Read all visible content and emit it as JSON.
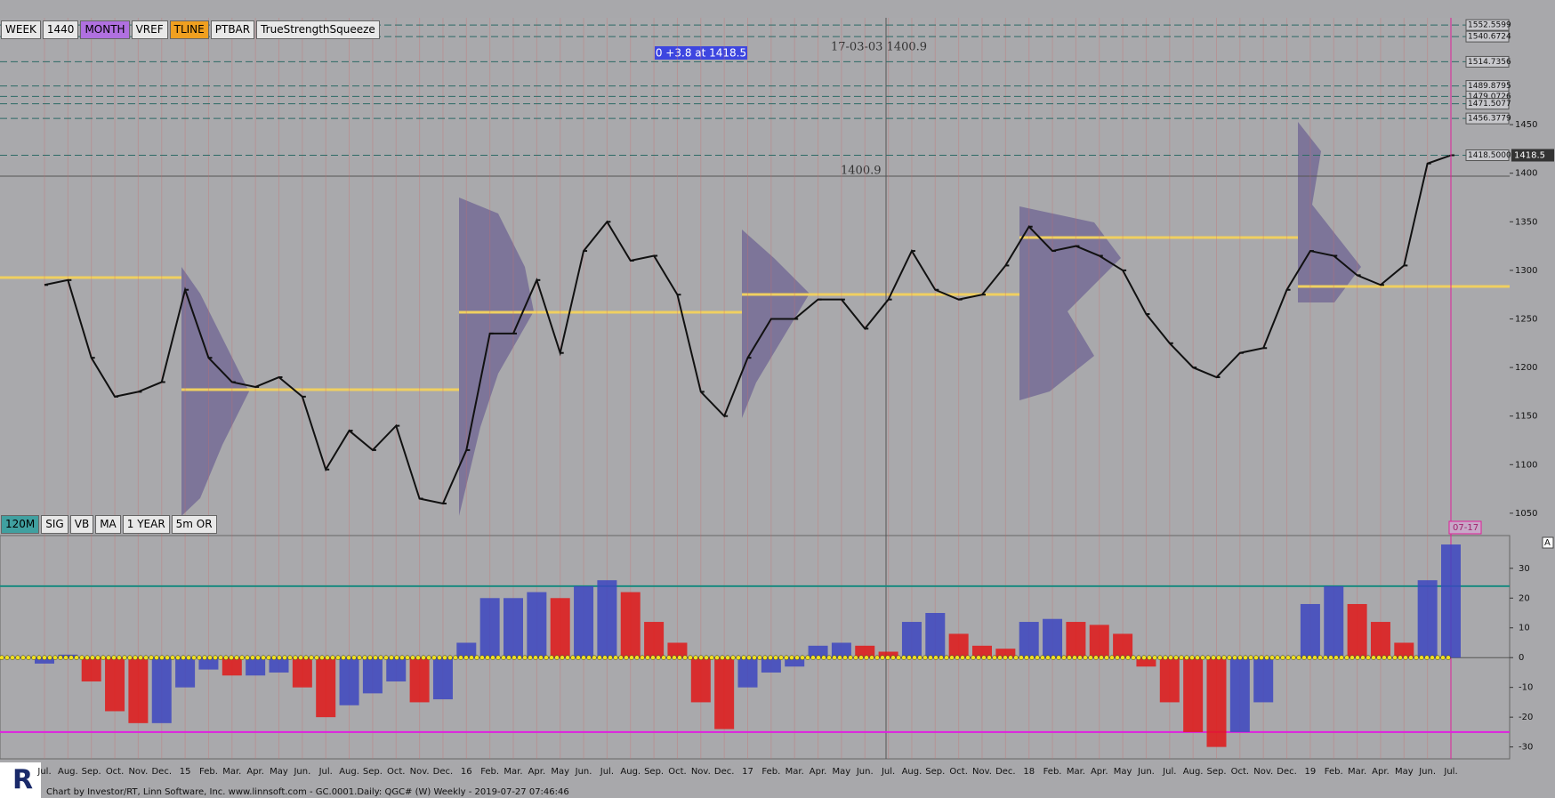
{
  "toolbar": [
    "WEEK",
    "1440",
    "MONTH",
    "VREF",
    "TLINE",
    "PTBAR",
    "TrueStrengthSqueeze"
  ],
  "toolbar2": [
    "120M",
    "SIG",
    "VB",
    "MA",
    "1 YEAR",
    "5m OR"
  ],
  "footer": "Chart by Investor/RT, Linn Software, Inc. www.linnsoft.com - GC.0001.Daily: QGC# (W) Weekly - 2019-07-27 07:46:46",
  "chart_data": [
    {
      "type": "line",
      "color": "#111111",
      "categories": [
        "Jul.",
        "Aug.",
        "Sep.",
        "Oct.",
        "Nov.",
        "Dec.",
        "15",
        "Feb.",
        "Mar.",
        "Apr.",
        "May",
        "Jun.",
        "Jul.",
        "Aug.",
        "Sep.",
        "Oct.",
        "Nov.",
        "Dec.",
        "16",
        "Feb.",
        "Mar.",
        "Apr.",
        "May",
        "Jun.",
        "Jul.",
        "Aug.",
        "Sep.",
        "Oct.",
        "Nov.",
        "Dec.",
        "17",
        "Feb.",
        "Mar.",
        "Apr.",
        "May",
        "Jun.",
        "Jul.",
        "Aug.",
        "Sep.",
        "Oct.",
        "Nov.",
        "Dec.",
        "18",
        "Feb.",
        "Mar.",
        "Apr.",
        "May",
        "Jun.",
        "Jul.",
        "Aug.",
        "Sep.",
        "Oct.",
        "Nov.",
        "Dec.",
        "19",
        "Feb.",
        "Mar.",
        "Apr.",
        "May",
        "Jun.",
        "Jul."
      ],
      "values": [
        1285,
        1290,
        1210,
        1170,
        1175,
        1185,
        1280,
        1210,
        1185,
        1180,
        1190,
        1170,
        1095,
        1135,
        1115,
        1140,
        1065,
        1060,
        1115,
        1235,
        1235,
        1290,
        1215,
        1320,
        1350,
        1310,
        1315,
        1275,
        1175,
        1150,
        1210,
        1250,
        1250,
        1270,
        1270,
        1240,
        1270,
        1320,
        1280,
        1270,
        1275,
        1305,
        1345,
        1320,
        1325,
        1315,
        1300,
        1255,
        1225,
        1200,
        1190,
        1215,
        1220,
        1280,
        1320,
        1315,
        1295,
        1285,
        1305,
        1410,
        1418.5
      ],
      "ylim": [
        1027,
        1560
      ],
      "yticks": [
        1050,
        1100,
        1150,
        1200,
        1250,
        1300,
        1350,
        1400,
        1450
      ],
      "levels": [
        1552.5599,
        1540.6724,
        1514.7356,
        1489.8795,
        1479.0726,
        1471.5077,
        1456.3779,
        {
          "value": 1418.5,
          "label": "1418.5000"
        }
      ],
      "last_price": 1418.5,
      "annotations": [
        "0 +3.8 at 1418.5",
        "17-03-03 1400.9",
        "1400.9",
        "07-17"
      ]
    },
    {
      "type": "bar",
      "up_color": "#3d46bf",
      "down_color": "#e01818",
      "values": [
        -2,
        1,
        -8,
        -18,
        -22,
        -22,
        -10,
        -4,
        -6,
        -6,
        -5,
        -10,
        -20,
        -16,
        -12,
        -8,
        -15,
        -14,
        5,
        20,
        20,
        22,
        20,
        24,
        26,
        22,
        12,
        5,
        -15,
        -24,
        -10,
        -5,
        -3,
        4,
        5,
        4,
        2,
        12,
        15,
        8,
        4,
        3,
        12,
        13,
        12,
        11,
        8,
        -3,
        -15,
        -25,
        -30,
        -25,
        -15,
        0,
        18,
        24,
        18,
        12,
        5,
        26,
        38
      ],
      "ylim": [
        -34,
        41
      ],
      "yticks": [
        -30,
        -20,
        -10,
        0,
        10,
        20,
        30
      ],
      "reference_lines": [
        {
          "value": 24,
          "color": "#1a8a80"
        },
        {
          "value": -25,
          "color": "#e020e0"
        }
      ],
      "panel_label": "A"
    }
  ]
}
